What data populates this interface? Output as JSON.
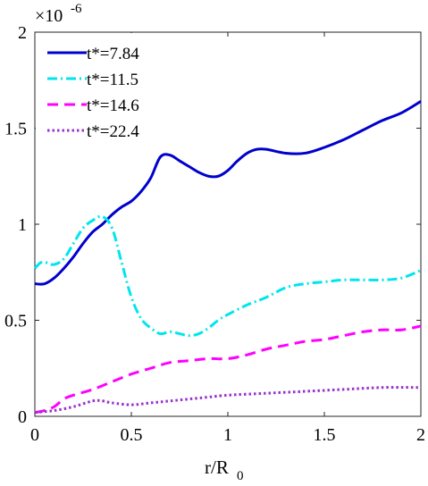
{
  "chart_data": {
    "type": "line",
    "xlabel": "r/R",
    "xlabel_subscript": "0",
    "ylabel": "",
    "title": "",
    "xlim": [
      0,
      2
    ],
    "ylim": [
      0,
      2
    ],
    "y_exponent_base": "×10",
    "y_exponent_power": "-6",
    "x_ticks": [
      "0",
      "0.5",
      "1",
      "1.5",
      "2"
    ],
    "y_ticks": [
      "0",
      "0.5",
      "1",
      "1.5",
      "2"
    ],
    "grid": false,
    "legend_position": "top-left",
    "series": [
      {
        "name": "t*=7.84",
        "color": "#0000cd",
        "dash": "solid",
        "x": [
          0,
          0.05,
          0.1,
          0.15,
          0.2,
          0.25,
          0.3,
          0.35,
          0.4,
          0.45,
          0.5,
          0.55,
          0.6,
          0.65,
          0.7,
          0.75,
          0.8,
          0.85,
          0.9,
          0.95,
          1.0,
          1.05,
          1.1,
          1.15,
          1.2,
          1.3,
          1.4,
          1.5,
          1.6,
          1.7,
          1.8,
          1.9,
          2.0
        ],
        "y": [
          0.69,
          0.69,
          0.72,
          0.77,
          0.83,
          0.9,
          0.96,
          1.0,
          1.05,
          1.09,
          1.12,
          1.17,
          1.24,
          1.35,
          1.36,
          1.33,
          1.3,
          1.27,
          1.25,
          1.25,
          1.28,
          1.33,
          1.37,
          1.39,
          1.39,
          1.37,
          1.37,
          1.4,
          1.44,
          1.49,
          1.54,
          1.58,
          1.64
        ]
      },
      {
        "name": "t*=11.5",
        "color": "#00e5ee",
        "dash": "dashdot",
        "x": [
          0,
          0.03,
          0.06,
          0.1,
          0.15,
          0.2,
          0.25,
          0.3,
          0.35,
          0.4,
          0.45,
          0.5,
          0.55,
          0.6,
          0.65,
          0.7,
          0.75,
          0.8,
          0.85,
          0.9,
          0.95,
          1.0,
          1.1,
          1.2,
          1.3,
          1.4,
          1.5,
          1.6,
          1.7,
          1.8,
          1.9,
          2.0
        ],
        "y": [
          0.77,
          0.8,
          0.8,
          0.79,
          0.82,
          0.9,
          0.98,
          1.02,
          1.04,
          0.98,
          0.8,
          0.62,
          0.51,
          0.46,
          0.43,
          0.44,
          0.43,
          0.42,
          0.43,
          0.46,
          0.5,
          0.53,
          0.58,
          0.62,
          0.67,
          0.69,
          0.7,
          0.71,
          0.71,
          0.71,
          0.72,
          0.76
        ]
      },
      {
        "name": "t*=14.6",
        "color": "#ff00ff",
        "dash": "dashed",
        "x": [
          0,
          0.05,
          0.1,
          0.15,
          0.2,
          0.3,
          0.4,
          0.5,
          0.6,
          0.7,
          0.8,
          0.9,
          1.0,
          1.1,
          1.2,
          1.3,
          1.4,
          1.5,
          1.6,
          1.7,
          1.8,
          1.9,
          2.0
        ],
        "y": [
          0.02,
          0.03,
          0.05,
          0.09,
          0.11,
          0.14,
          0.18,
          0.22,
          0.25,
          0.28,
          0.29,
          0.3,
          0.3,
          0.32,
          0.35,
          0.37,
          0.39,
          0.4,
          0.42,
          0.44,
          0.45,
          0.45,
          0.47
        ]
      },
      {
        "name": "t*=22.4",
        "color": "#9932cc",
        "dash": "dotted",
        "x": [
          0,
          0.1,
          0.2,
          0.3,
          0.35,
          0.4,
          0.5,
          0.6,
          0.7,
          0.8,
          0.9,
          1.0,
          1.2,
          1.4,
          1.6,
          1.8,
          2.0
        ],
        "y": [
          0.02,
          0.03,
          0.05,
          0.08,
          0.08,
          0.07,
          0.06,
          0.07,
          0.08,
          0.09,
          0.1,
          0.11,
          0.12,
          0.13,
          0.14,
          0.15,
          0.15
        ]
      }
    ]
  }
}
